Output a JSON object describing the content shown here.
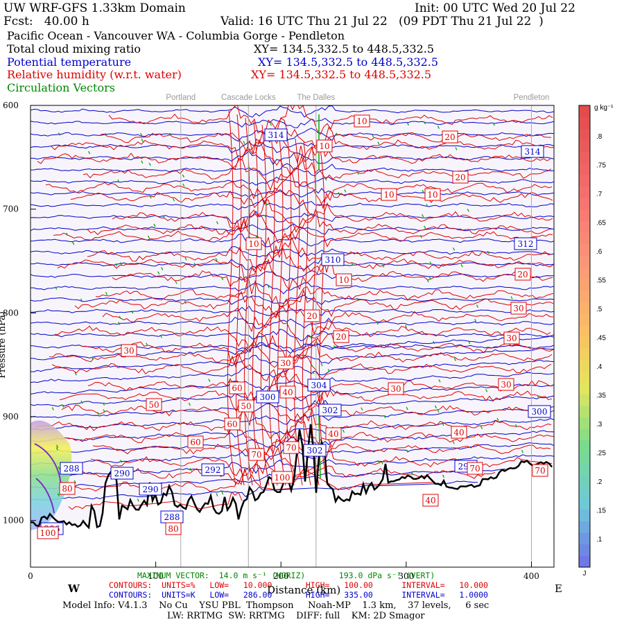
{
  "header": {
    "model": "UW WRF-GFS 1.33km Domain",
    "init": "Init: 00 UTC Wed 20 Jul 22",
    "fcst": "Fcst:   40.00 h",
    "valid": "Valid: 16 UTC Thu 21 Jul 22   (09 PDT Thu 21 Jul 22  )",
    "region": "Pacific Ocean - Vancouver WA - Columbia Gorge - Pendleton",
    "fields": [
      {
        "name": "Total cloud mixing ratio",
        "xy": "XY= 134.5,332.5 to 448.5,332.5",
        "color": "#000000"
      },
      {
        "name": "Potential temperature",
        "xy": "XY= 134.5,332.5 to 448.5,332.5",
        "color": "#0000cc"
      },
      {
        "name": "Relative humidity (w.r.t. water)",
        "xy": "XY= 134.5,332.5 to 448.5,332.5",
        "color": "#dd0000"
      },
      {
        "name": "Circulation Vectors",
        "xy": "",
        "color": "#008800"
      }
    ]
  },
  "stations": [
    "Portland",
    "Cascade Locks",
    "The Dalles",
    "Pendleton"
  ],
  "chart_data": {
    "type": "contour cross-section",
    "x_axis": {
      "label": "Distance (km)",
      "ticks": [
        0,
        100,
        200,
        300,
        400
      ],
      "range": [
        0,
        418
      ],
      "left_end": "W",
      "right_end": "E"
    },
    "y_axis": {
      "label": "Pressure (hPa)",
      "ticks": [
        600,
        700,
        800,
        900,
        1000
      ],
      "range": [
        600,
        1045
      ],
      "inverted": true
    },
    "station_positions_km": [
      {
        "name": "Portland",
        "km": 120
      },
      {
        "name": "Cascade Locks",
        "km": 174
      },
      {
        "name": "The Dalles",
        "km": 228
      },
      {
        "name": "Pendleton",
        "km": 400
      }
    ],
    "colorbar": {
      "units": "g kg⁻¹",
      "ticks": [
        ".1",
        ".15",
        ".2",
        ".25",
        ".3",
        ".35",
        ".4",
        ".45",
        ".5",
        ".55",
        ".6",
        ".65",
        ".7",
        ".75",
        ".8"
      ],
      "bottom_label": "J"
    },
    "theta_labels": [
      "314",
      "314",
      "312",
      "310",
      "304",
      "302",
      "300",
      "300",
      "302",
      "298",
      "292",
      "290",
      "290",
      "288",
      "288",
      "286"
    ],
    "rh_labels": [
      "10",
      "10",
      "10",
      "10",
      "10",
      "10",
      "20",
      "20",
      "20",
      "20",
      "20",
      "30",
      "30",
      "30",
      "30",
      "30",
      "30",
      "40",
      "40",
      "40",
      "40",
      "50",
      "50",
      "60",
      "60",
      "60",
      "70",
      "70",
      "70",
      "70",
      "80",
      "80",
      "100",
      "100"
    ]
  },
  "footer": {
    "max_vector": "MAXIMUM VECTOR:  14.0 m s⁻¹ (HORIZ)       193.0 dPa s⁻¹ (VERT)",
    "contours_rh": "CONTOURS:  UNITS=%   LOW=   10.000       HIGH=   100.00      INTERVAL=   10.000",
    "contours_theta": "CONTOURS:  UNITS=K   LOW=   286.00       HIGH=   335.00      INTERVAL=   1.0000",
    "model_info": "Model Info: V4.1.3    No Cu    YSU PBL  Thompson     Noah-MP    1.3 km,    37 levels,     6 sec",
    "physics": "LW: RRTMG  SW: RRTMG    DIFF: full    KM: 2D Smagor"
  }
}
